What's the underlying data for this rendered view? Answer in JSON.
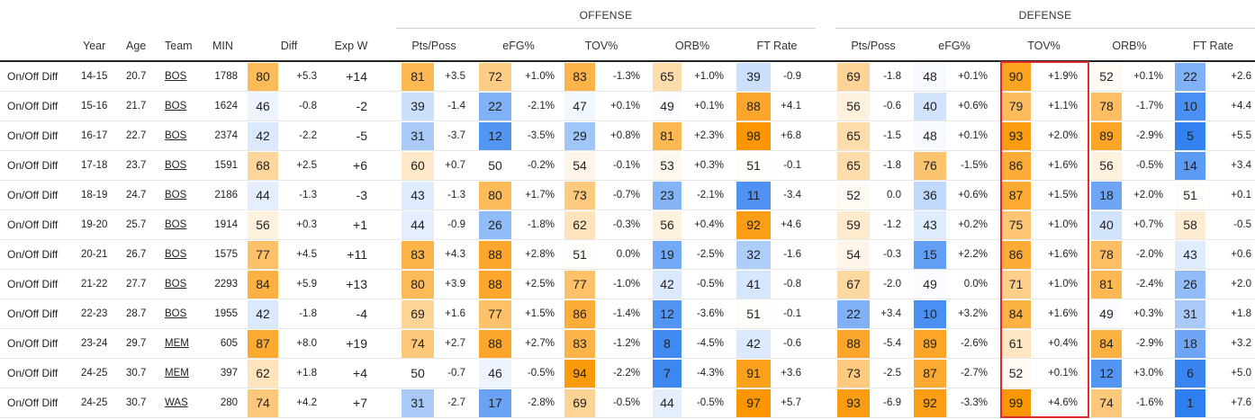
{
  "groups": {
    "offense": "OFFENSE",
    "defense": "DEFENSE"
  },
  "headers": {
    "year": "Year",
    "age": "Age",
    "team": "Team",
    "min": "MIN",
    "diff": "Diff",
    "expw": "Exp W",
    "off_pts": "Pts/Poss",
    "off_efg": "eFG%",
    "off_tov": "TOV%",
    "off_orb": "ORB%",
    "off_ft": "FT Rate",
    "def_pts": "Pts/Poss",
    "def_efg": "eFG%",
    "def_tov": "TOV%",
    "def_orb": "ORB%",
    "def_ft": "FT Rate"
  },
  "rows": [
    {
      "label": "On/Off Diff",
      "year": "14-15",
      "age": "20.7",
      "team": "BOS",
      "min": "1788",
      "d_p": "80",
      "d_v": "+5.3",
      "expw": "+14",
      "op_p": "81",
      "op_v": "+3.5",
      "oe_p": "72",
      "oe_v": "+1.0%",
      "ot_p": "83",
      "ot_v": "-1.3%",
      "oo_p": "65",
      "oo_v": "+1.0%",
      "of_p": "39",
      "of_v": "-0.9",
      "dp_p": "69",
      "dp_v": "-1.8",
      "de_p": "48",
      "de_v": "+0.1%",
      "dt_p": "90",
      "dt_v": "+1.9%",
      "do_p": "52",
      "do_v": "+0.1%",
      "df_p": "22",
      "df_v": "+2.6"
    },
    {
      "label": "On/Off Diff",
      "year": "15-16",
      "age": "21.7",
      "team": "BOS",
      "min": "1624",
      "d_p": "46",
      "d_v": "-0.8",
      "expw": "-2",
      "op_p": "39",
      "op_v": "-1.4",
      "oe_p": "22",
      "oe_v": "-2.1%",
      "ot_p": "47",
      "ot_v": "+0.1%",
      "oo_p": "49",
      "oo_v": "+0.1%",
      "of_p": "88",
      "of_v": "+4.1",
      "dp_p": "56",
      "dp_v": "-0.6",
      "de_p": "40",
      "de_v": "+0.6%",
      "dt_p": "79",
      "dt_v": "+1.1%",
      "do_p": "78",
      "do_v": "-1.7%",
      "df_p": "10",
      "df_v": "+4.4"
    },
    {
      "label": "On/Off Diff",
      "year": "16-17",
      "age": "22.7",
      "team": "BOS",
      "min": "2374",
      "d_p": "42",
      "d_v": "-2.2",
      "expw": "-5",
      "op_p": "31",
      "op_v": "-3.7",
      "oe_p": "12",
      "oe_v": "-3.5%",
      "ot_p": "29",
      "ot_v": "+0.8%",
      "oo_p": "81",
      "oo_v": "+2.3%",
      "of_p": "98",
      "of_v": "+6.8",
      "dp_p": "65",
      "dp_v": "-1.5",
      "de_p": "48",
      "de_v": "+0.1%",
      "dt_p": "93",
      "dt_v": "+2.0%",
      "do_p": "89",
      "do_v": "-2.9%",
      "df_p": "5",
      "df_v": "+5.5"
    },
    {
      "label": "On/Off Diff",
      "year": "17-18",
      "age": "23.7",
      "team": "BOS",
      "min": "1591",
      "d_p": "68",
      "d_v": "+2.5",
      "expw": "+6",
      "op_p": "60",
      "op_v": "+0.7",
      "oe_p": "50",
      "oe_v": "-0.2%",
      "ot_p": "54",
      "ot_v": "-0.1%",
      "oo_p": "53",
      "oo_v": "+0.3%",
      "of_p": "51",
      "of_v": "-0.1",
      "dp_p": "65",
      "dp_v": "-1.8",
      "de_p": "76",
      "de_v": "-1.5%",
      "dt_p": "86",
      "dt_v": "+1.6%",
      "do_p": "56",
      "do_v": "-0.5%",
      "df_p": "14",
      "df_v": "+3.4"
    },
    {
      "label": "On/Off Diff",
      "year": "18-19",
      "age": "24.7",
      "team": "BOS",
      "min": "2186",
      "d_p": "44",
      "d_v": "-1.3",
      "expw": "-3",
      "op_p": "43",
      "op_v": "-1.3",
      "oe_p": "80",
      "oe_v": "+1.7%",
      "ot_p": "73",
      "ot_v": "-0.7%",
      "oo_p": "23",
      "oo_v": "-2.1%",
      "of_p": "11",
      "of_v": "-3.4",
      "dp_p": "52",
      "dp_v": "0.0",
      "de_p": "36",
      "de_v": "+0.6%",
      "dt_p": "87",
      "dt_v": "+1.5%",
      "do_p": "18",
      "do_v": "+2.0%",
      "df_p": "51",
      "df_v": "+0.1"
    },
    {
      "label": "On/Off Diff",
      "year": "19-20",
      "age": "25.7",
      "team": "BOS",
      "min": "1914",
      "d_p": "56",
      "d_v": "+0.3",
      "expw": "+1",
      "op_p": "44",
      "op_v": "-0.9",
      "oe_p": "26",
      "oe_v": "-1.8%",
      "ot_p": "62",
      "ot_v": "-0.3%",
      "oo_p": "56",
      "oo_v": "+0.4%",
      "of_p": "92",
      "of_v": "+4.6",
      "dp_p": "59",
      "dp_v": "-1.2",
      "de_p": "43",
      "de_v": "+0.2%",
      "dt_p": "75",
      "dt_v": "+1.0%",
      "do_p": "40",
      "do_v": "+0.7%",
      "df_p": "58",
      "df_v": "-0.5"
    },
    {
      "label": "On/Off Diff",
      "year": "20-21",
      "age": "26.7",
      "team": "BOS",
      "min": "1575",
      "d_p": "77",
      "d_v": "+4.5",
      "expw": "+11",
      "op_p": "83",
      "op_v": "+4.3",
      "oe_p": "88",
      "oe_v": "+2.8%",
      "ot_p": "51",
      "ot_v": "0.0%",
      "oo_p": "19",
      "oo_v": "-2.5%",
      "of_p": "32",
      "of_v": "-1.6",
      "dp_p": "54",
      "dp_v": "-0.3",
      "de_p": "15",
      "de_v": "+2.2%",
      "dt_p": "86",
      "dt_v": "+1.6%",
      "do_p": "78",
      "do_v": "-2.0%",
      "df_p": "43",
      "df_v": "+0.6"
    },
    {
      "label": "On/Off Diff",
      "year": "21-22",
      "age": "27.7",
      "team": "BOS",
      "min": "2293",
      "d_p": "84",
      "d_v": "+5.9",
      "expw": "+13",
      "op_p": "80",
      "op_v": "+3.9",
      "oe_p": "88",
      "oe_v": "+2.5%",
      "ot_p": "77",
      "ot_v": "-1.0%",
      "oo_p": "42",
      "oo_v": "-0.5%",
      "of_p": "41",
      "of_v": "-0.8",
      "dp_p": "67",
      "dp_v": "-2.0",
      "de_p": "49",
      "de_v": "0.0%",
      "dt_p": "71",
      "dt_v": "+1.0%",
      "do_p": "81",
      "do_v": "-2.4%",
      "df_p": "26",
      "df_v": "+2.0"
    },
    {
      "label": "On/Off Diff",
      "year": "22-23",
      "age": "28.7",
      "team": "BOS",
      "min": "1955",
      "d_p": "42",
      "d_v": "-1.8",
      "expw": "-4",
      "op_p": "69",
      "op_v": "+1.6",
      "oe_p": "77",
      "oe_v": "+1.5%",
      "ot_p": "86",
      "ot_v": "-1.4%",
      "oo_p": "12",
      "oo_v": "-3.6%",
      "of_p": "51",
      "of_v": "-0.1",
      "dp_p": "22",
      "dp_v": "+3.4",
      "de_p": "10",
      "de_v": "+3.2%",
      "dt_p": "84",
      "dt_v": "+1.6%",
      "do_p": "49",
      "do_v": "+0.3%",
      "df_p": "31",
      "df_v": "+1.8"
    },
    {
      "label": "On/Off Diff",
      "year": "23-24",
      "age": "29.7",
      "team": "MEM",
      "min": "605",
      "d_p": "87",
      "d_v": "+8.0",
      "expw": "+19",
      "op_p": "74",
      "op_v": "+2.7",
      "oe_p": "88",
      "oe_v": "+2.7%",
      "ot_p": "83",
      "ot_v": "-1.2%",
      "oo_p": "8",
      "oo_v": "-4.5%",
      "of_p": "42",
      "of_v": "-0.6",
      "dp_p": "88",
      "dp_v": "-5.4",
      "de_p": "89",
      "de_v": "-2.6%",
      "dt_p": "61",
      "dt_v": "+0.4%",
      "do_p": "84",
      "do_v": "-2.9%",
      "df_p": "18",
      "df_v": "+3.2"
    },
    {
      "label": "On/Off Diff",
      "year": "24-25",
      "age": "30.7",
      "team": "MEM",
      "min": "397",
      "d_p": "62",
      "d_v": "+1.8",
      "expw": "+4",
      "op_p": "50",
      "op_v": "-0.7",
      "oe_p": "46",
      "oe_v": "-0.5%",
      "ot_p": "94",
      "ot_v": "-2.2%",
      "oo_p": "7",
      "oo_v": "-4.3%",
      "of_p": "91",
      "of_v": "+3.6",
      "dp_p": "73",
      "dp_v": "-2.5",
      "de_p": "87",
      "de_v": "-2.7%",
      "dt_p": "52",
      "dt_v": "+0.1%",
      "do_p": "12",
      "do_v": "+3.0%",
      "df_p": "6",
      "df_v": "+5.0"
    },
    {
      "label": "On/Off Diff",
      "year": "24-25",
      "age": "30.7",
      "team": "WAS",
      "min": "280",
      "d_p": "74",
      "d_v": "+4.2",
      "expw": "+7",
      "op_p": "31",
      "op_v": "-2.7",
      "oe_p": "17",
      "oe_v": "-2.8%",
      "ot_p": "69",
      "ot_v": "-0.5%",
      "oo_p": "44",
      "oo_v": "-0.5%",
      "of_p": "97",
      "of_v": "+5.7",
      "dp_p": "93",
      "dp_v": "-6.9",
      "de_p": "92",
      "de_v": "-3.3%",
      "dt_p": "99",
      "dt_v": "+4.6%",
      "do_p": "74",
      "do_v": "-1.6%",
      "df_p": "1",
      "df_v": "+7.6"
    }
  ]
}
